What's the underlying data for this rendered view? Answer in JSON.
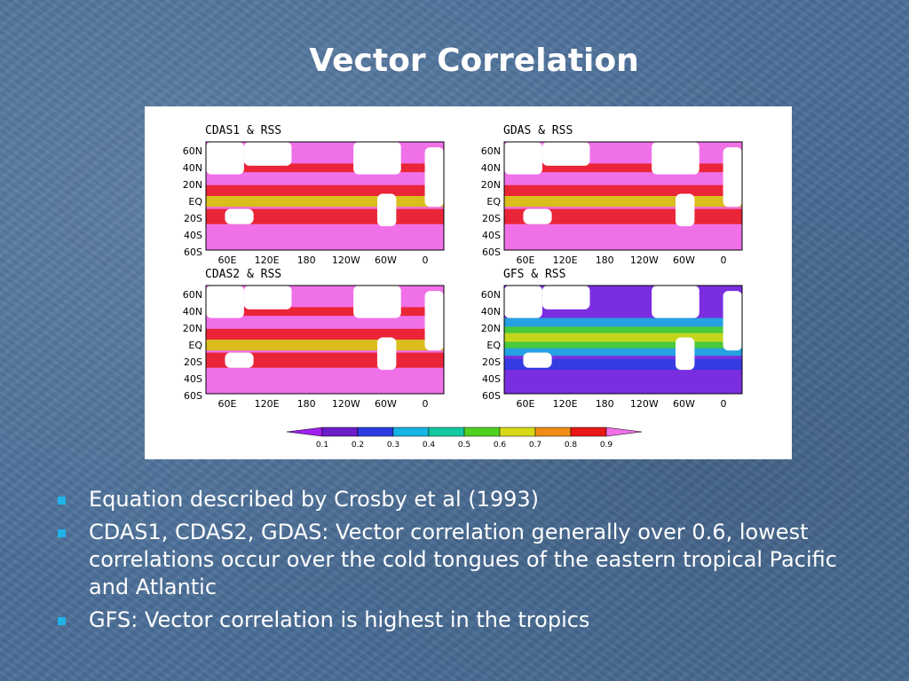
{
  "slide": {
    "title": "Vector Correlation"
  },
  "figure": {
    "panels": [
      {
        "label": "CDAS1  &  RSS",
        "palette": "high"
      },
      {
        "label": "GDAS  &  RSS",
        "palette": "high"
      },
      {
        "label": "CDAS2  &  RSS",
        "palette": "high"
      },
      {
        "label": "GFS  &  RSS",
        "palette": "low"
      }
    ],
    "lat_labels": [
      "60N",
      "40N",
      "20N",
      "EQ",
      "20S",
      "40S",
      "60S"
    ],
    "lon_labels": [
      "60E",
      "120E",
      "180",
      "120W",
      "60W",
      "0"
    ],
    "colorbar": {
      "labels": [
        "0.1",
        "0.2",
        "0.3",
        "0.4",
        "0.5",
        "0.6",
        "0.7",
        "0.8",
        "0.9"
      ],
      "colors": [
        "#a020f0",
        "#6a1ec8",
        "#2a3ce0",
        "#16b4e0",
        "#14c8a0",
        "#50d020",
        "#d8d818",
        "#f08c18",
        "#e81818",
        "#f070e8"
      ]
    }
  },
  "bullets": [
    "Equation described by Crosby et al (1993)",
    "CDAS1, CDAS2, GDAS:  Vector correlation generally over 0.6, lowest correlations occur over the cold tongues of the eastern tropical Pacific and Atlantic",
    "GFS:  Vector correlation is highest in the tropics"
  ]
}
